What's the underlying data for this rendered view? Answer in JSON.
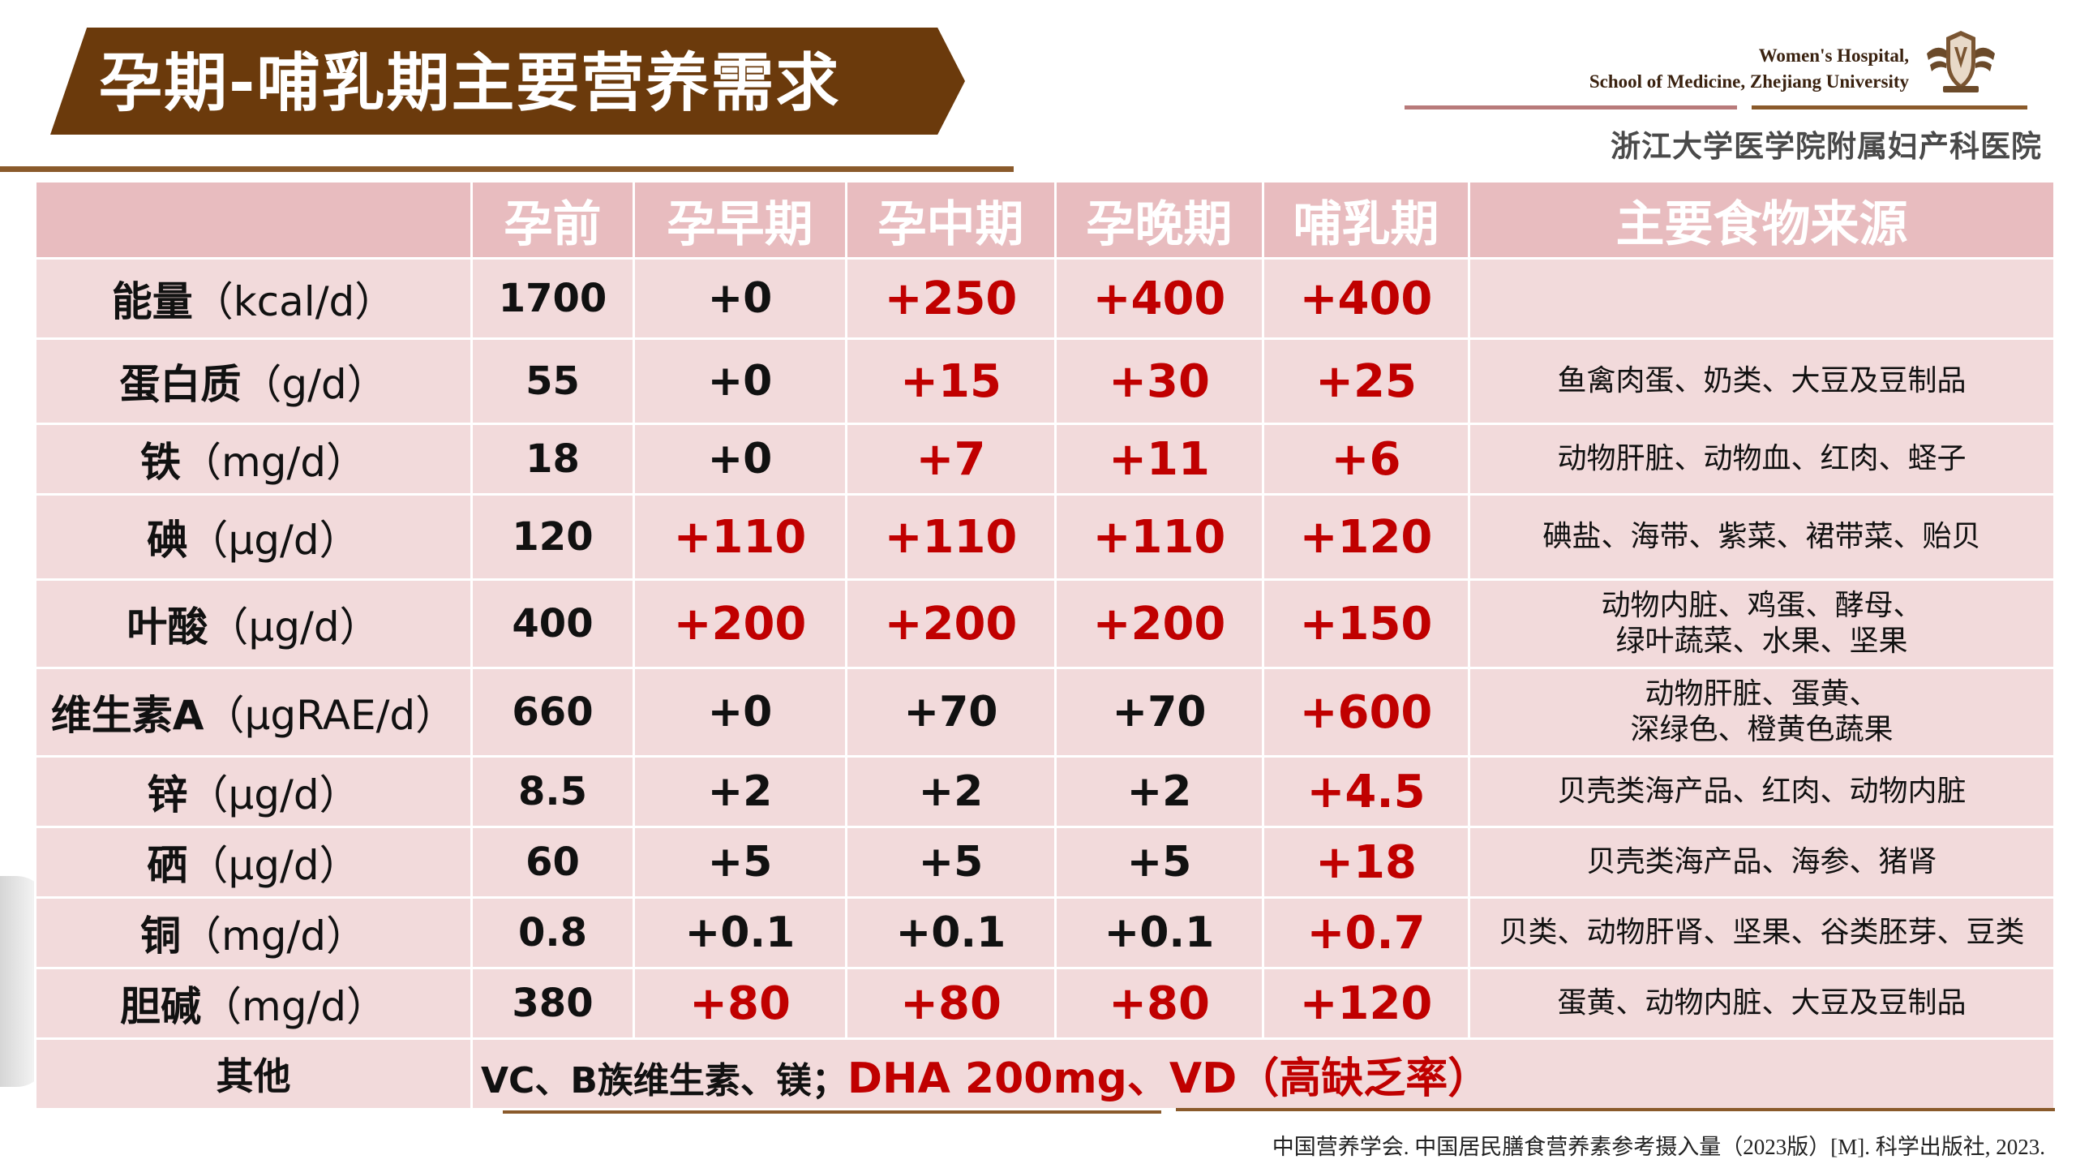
{
  "title": "孕期-哺乳期主要营养需求",
  "hospital": {
    "name_en_line1": "Women's Hospital,",
    "name_en_line2": "School of Medicine, Zhejiang University",
    "name_cn": "浙江大学医学院附属妇产科医院"
  },
  "colors": {
    "banner": "#6b3a0c",
    "header_row": "#e8bcbf",
    "body_row": "#f2dadb",
    "highlight": "#c00000"
  },
  "table": {
    "headers": [
      "",
      "孕前",
      "孕早期",
      "孕中期",
      "孕晚期",
      "哺乳期",
      "主要食物来源"
    ],
    "rows": [
      {
        "nutrient": "能量",
        "unit": "（kcal/d）",
        "pre": "1700",
        "early": "+0",
        "mid": "+250",
        "late": "+400",
        "lact": "+400",
        "source": "",
        "red": [
          false,
          true,
          true,
          true
        ]
      },
      {
        "nutrient": "蛋白质",
        "unit": "（g/d）",
        "pre": "55",
        "early": "+0",
        "mid": "+15",
        "late": "+30",
        "lact": "+25",
        "source": "鱼禽肉蛋、奶类、大豆及豆制品",
        "red": [
          false,
          true,
          true,
          true
        ]
      },
      {
        "nutrient": "铁",
        "unit": "（mg/d）",
        "pre": "18",
        "early": "+0",
        "mid": "+7",
        "late": "+11",
        "lact": "+6",
        "source": "动物肝脏、动物血、红肉、蛏子",
        "red": [
          false,
          true,
          true,
          true
        ]
      },
      {
        "nutrient": "碘",
        "unit": "（μg/d）",
        "pre": "120",
        "early": "+110",
        "mid": "+110",
        "late": "+110",
        "lact": "+120",
        "source": "碘盐、海带、紫菜、裙带菜、贻贝",
        "red": [
          true,
          true,
          true,
          true
        ]
      },
      {
        "nutrient": "叶酸",
        "unit": "（μg/d）",
        "pre": "400",
        "early": "+200",
        "mid": "+200",
        "late": "+200",
        "lact": "+150",
        "source_line1": "动物内脏、鸡蛋、酵母、",
        "source_line2": "绿叶蔬菜、水果、坚果",
        "red": [
          true,
          true,
          true,
          true
        ]
      },
      {
        "nutrient": "维生素A",
        "unit": "（μgRAE/d）",
        "pre": "660",
        "early": "+0",
        "mid": "+70",
        "late": "+70",
        "lact": "+600",
        "source_line1": "动物肝脏、蛋黄、",
        "source_line2": "深绿色、橙黄色蔬果",
        "red": [
          false,
          false,
          false,
          true
        ]
      },
      {
        "nutrient": "锌",
        "unit": "（μg/d）",
        "pre": "8.5",
        "early": "+2",
        "mid": "+2",
        "late": "+2",
        "lact": "+4.5",
        "source": "贝壳类海产品、红肉、动物内脏",
        "red": [
          false,
          false,
          false,
          true
        ]
      },
      {
        "nutrient": "硒",
        "unit": "（μg/d）",
        "pre": "60",
        "early": "+5",
        "mid": "+5",
        "late": "+5",
        "lact": "+18",
        "source": "贝壳类海产品、海参、猪肾",
        "red": [
          false,
          false,
          false,
          true
        ]
      },
      {
        "nutrient": "铜",
        "unit": "（mg/d）",
        "pre": "0.8",
        "early": "+0.1",
        "mid": "+0.1",
        "late": "+0.1",
        "lact": "+0.7",
        "source": "贝类、动物肝肾、坚果、谷类胚芽、豆类",
        "red": [
          false,
          false,
          false,
          true
        ]
      },
      {
        "nutrient": "胆碱",
        "unit": "（mg/d）",
        "pre": "380",
        "early": "+80",
        "mid": "+80",
        "late": "+80",
        "lact": "+120",
        "source": "蛋黄、动物内脏、大豆及豆制品",
        "red": [
          true,
          true,
          true,
          true
        ]
      }
    ],
    "other": {
      "label": "其他",
      "text_black": "VC、B族维生素、镁；",
      "text_red": "DHA  200mg、VD（高缺乏率）"
    }
  },
  "citation": "中国营养学会. 中国居民膳食营养素参考摄入量（2023版）[M]. 科学出版社, 2023."
}
